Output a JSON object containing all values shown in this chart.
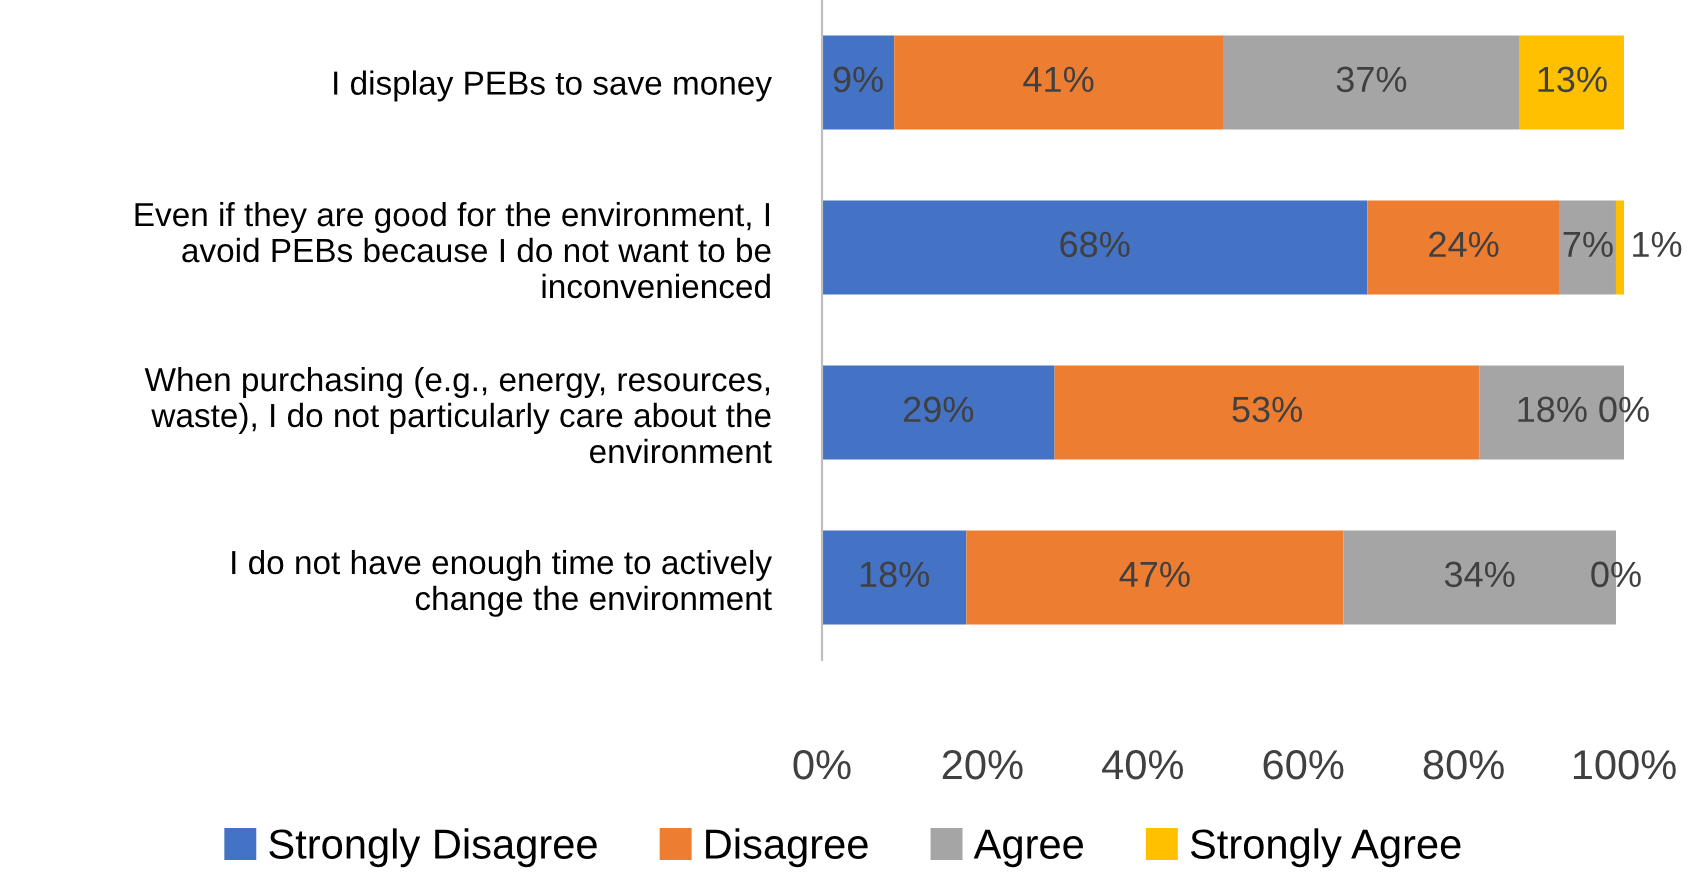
{
  "chart_data": {
    "type": "bar",
    "orientation": "horizontal",
    "stacked": true,
    "categories": [
      "I display PEBs to save money",
      "Even if they are good for the environment, I\navoid PEBs because I do not want to be\ninconvenienced",
      "When purchasing (e.g., energy, resources,\nwaste), I do not particularly care about the\nenvironment",
      "I do not have enough time to actively\nchange the environment"
    ],
    "series": [
      {
        "name": "Strongly Disagree",
        "color": "#4472c4",
        "values": [
          9,
          68,
          29,
          18
        ],
        "value_labels": [
          "9%",
          "68%",
          "29%",
          "18%"
        ]
      },
      {
        "name": "Disagree",
        "color": "#ed7d31",
        "values": [
          41,
          24,
          53,
          47
        ],
        "value_labels": [
          "41%",
          "24%",
          "53%",
          "47%"
        ]
      },
      {
        "name": "Agree",
        "color": "#a5a5a5",
        "values": [
          37,
          7,
          18,
          34
        ],
        "value_labels": [
          "37%",
          "7%",
          "18%",
          "34%"
        ]
      },
      {
        "name": "Strongly Agree",
        "color": "#ffc000",
        "values": [
          13,
          1,
          0,
          0
        ],
        "value_labels": [
          "13%",
          "1%",
          "0%",
          "0%"
        ]
      }
    ],
    "xlim": [
      0,
      100
    ],
    "xticks": [
      {
        "value": 0,
        "label": "0%"
      },
      {
        "value": 20,
        "label": "20%"
      },
      {
        "value": 40,
        "label": "40%"
      },
      {
        "value": 60,
        "label": "60%"
      },
      {
        "value": 80,
        "label": "80%"
      },
      {
        "value": 100,
        "label": "100%"
      }
    ],
    "grid": false,
    "legend": "bottom"
  }
}
